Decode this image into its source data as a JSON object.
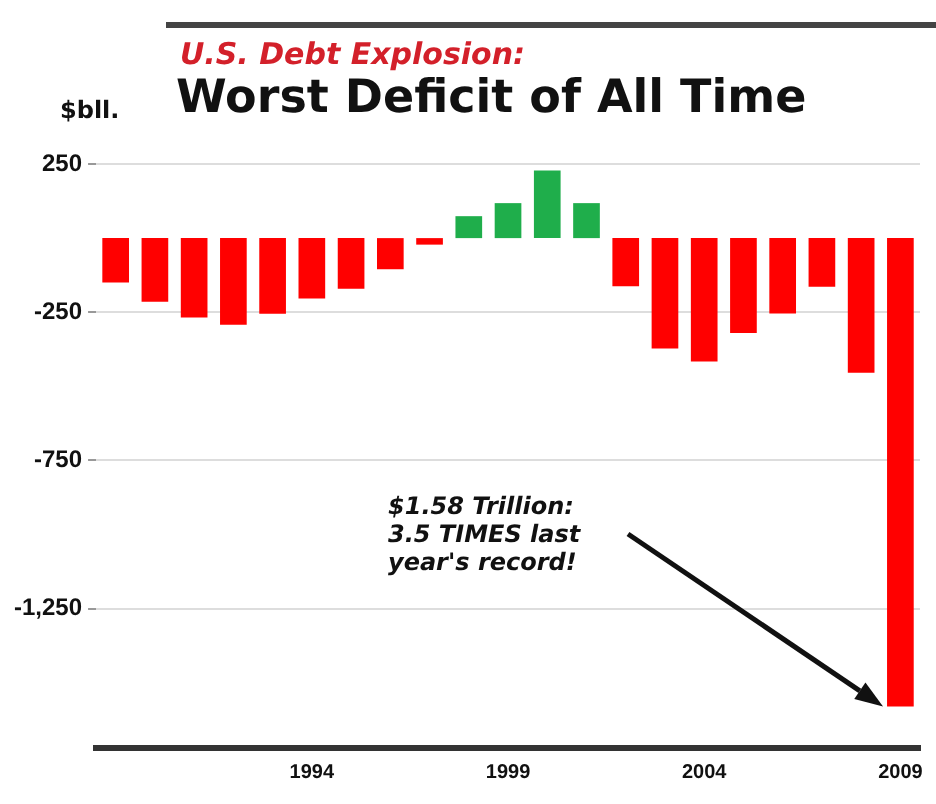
{
  "chart_data": {
    "type": "bar",
    "subtitle": "U.S. Debt Explosion:",
    "title": "Worst Deficit of All Time",
    "ylabel": "$bll.",
    "categories": [
      null,
      null,
      null,
      null,
      null,
      "1994",
      null,
      null,
      null,
      null,
      "1999",
      null,
      null,
      null,
      null,
      "2004",
      null,
      null,
      null,
      null,
      "2009"
    ],
    "values": [
      -150,
      -215,
      -268,
      -292,
      -255,
      -204,
      -171,
      -105,
      -22,
      74,
      118,
      228,
      118,
      -162,
      -372,
      -416,
      -320,
      -254,
      -164,
      -454,
      -1580
    ],
    "colors": [
      "#ff0000",
      "#ff0000",
      "#ff0000",
      "#ff0000",
      "#ff0000",
      "#ff0000",
      "#ff0000",
      "#ff0000",
      "#ff0000",
      "#1fae4b",
      "#1fae4b",
      "#1fae4b",
      "#1fae4b",
      "#ff0000",
      "#ff0000",
      "#ff0000",
      "#ff0000",
      "#ff0000",
      "#ff0000",
      "#ff0000",
      "#ff0000"
    ],
    "ylim": [
      -1720,
      250
    ],
    "yticks": [
      250,
      {
        "value": -250,
        "label": "-250"
      },
      {
        "value": -750,
        "label": "-750"
      },
      {
        "value": -1250,
        "label": "-1,250"
      }
    ],
    "grid": "y",
    "legend": false,
    "annotations": [
      "$1.58 Trillion: 3.5 TIMES last year's record!"
    ]
  }
}
